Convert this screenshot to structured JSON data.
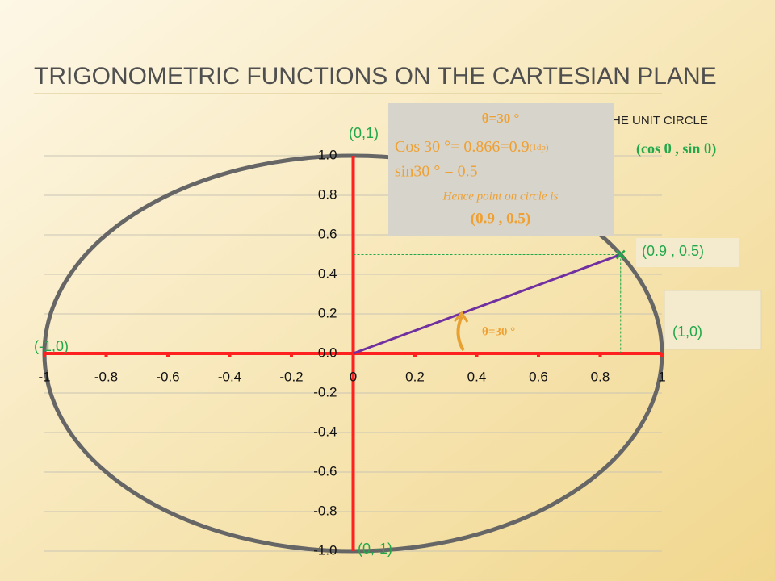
{
  "chart_data": {
    "type": "scatter",
    "title": "TRIGONOMETRIC FUNCTIONS ON THE CARTESIAN PLANE",
    "xlim": [
      -1,
      1
    ],
    "ylim": [
      -1,
      1
    ],
    "xticks": [
      -1,
      -0.8,
      -0.6,
      -0.4,
      -0.2,
      0,
      0.2,
      0.4,
      0.6,
      0.8,
      1
    ],
    "yticks": [
      {
        "value": 1,
        "label": "1.0"
      },
      0.8,
      0.6,
      0.4,
      0.2,
      {
        "value": 0,
        "label": "0.0"
      },
      -0.2,
      -0.4,
      -0.6,
      -0.8,
      {
        "value": -1,
        "label": "-1.0"
      }
    ],
    "grid": true,
    "point": {
      "x": 0.866,
      "y": 0.5,
      "color": "#7030a0"
    },
    "annotations": {
      "top": "(0,1)",
      "left": "(-1,0)",
      "right": "(1,0)",
      "bottom": "(0,-1)",
      "point": "(0.9 , 0.5)",
      "general": "(cos θ , sin θ)",
      "heading": "HE UNIT CIRCLE",
      "angle": "θ=30 °"
    },
    "info_box": {
      "angle": "θ=30 °",
      "cos": "Cos 30 °= 0.866=0.9",
      "cos_note": "(1dp)",
      "sin": "sin30 ° = 0.5",
      "hence": "Hence  point on circle is",
      "result": "(0.9 , 0.5)"
    }
  }
}
